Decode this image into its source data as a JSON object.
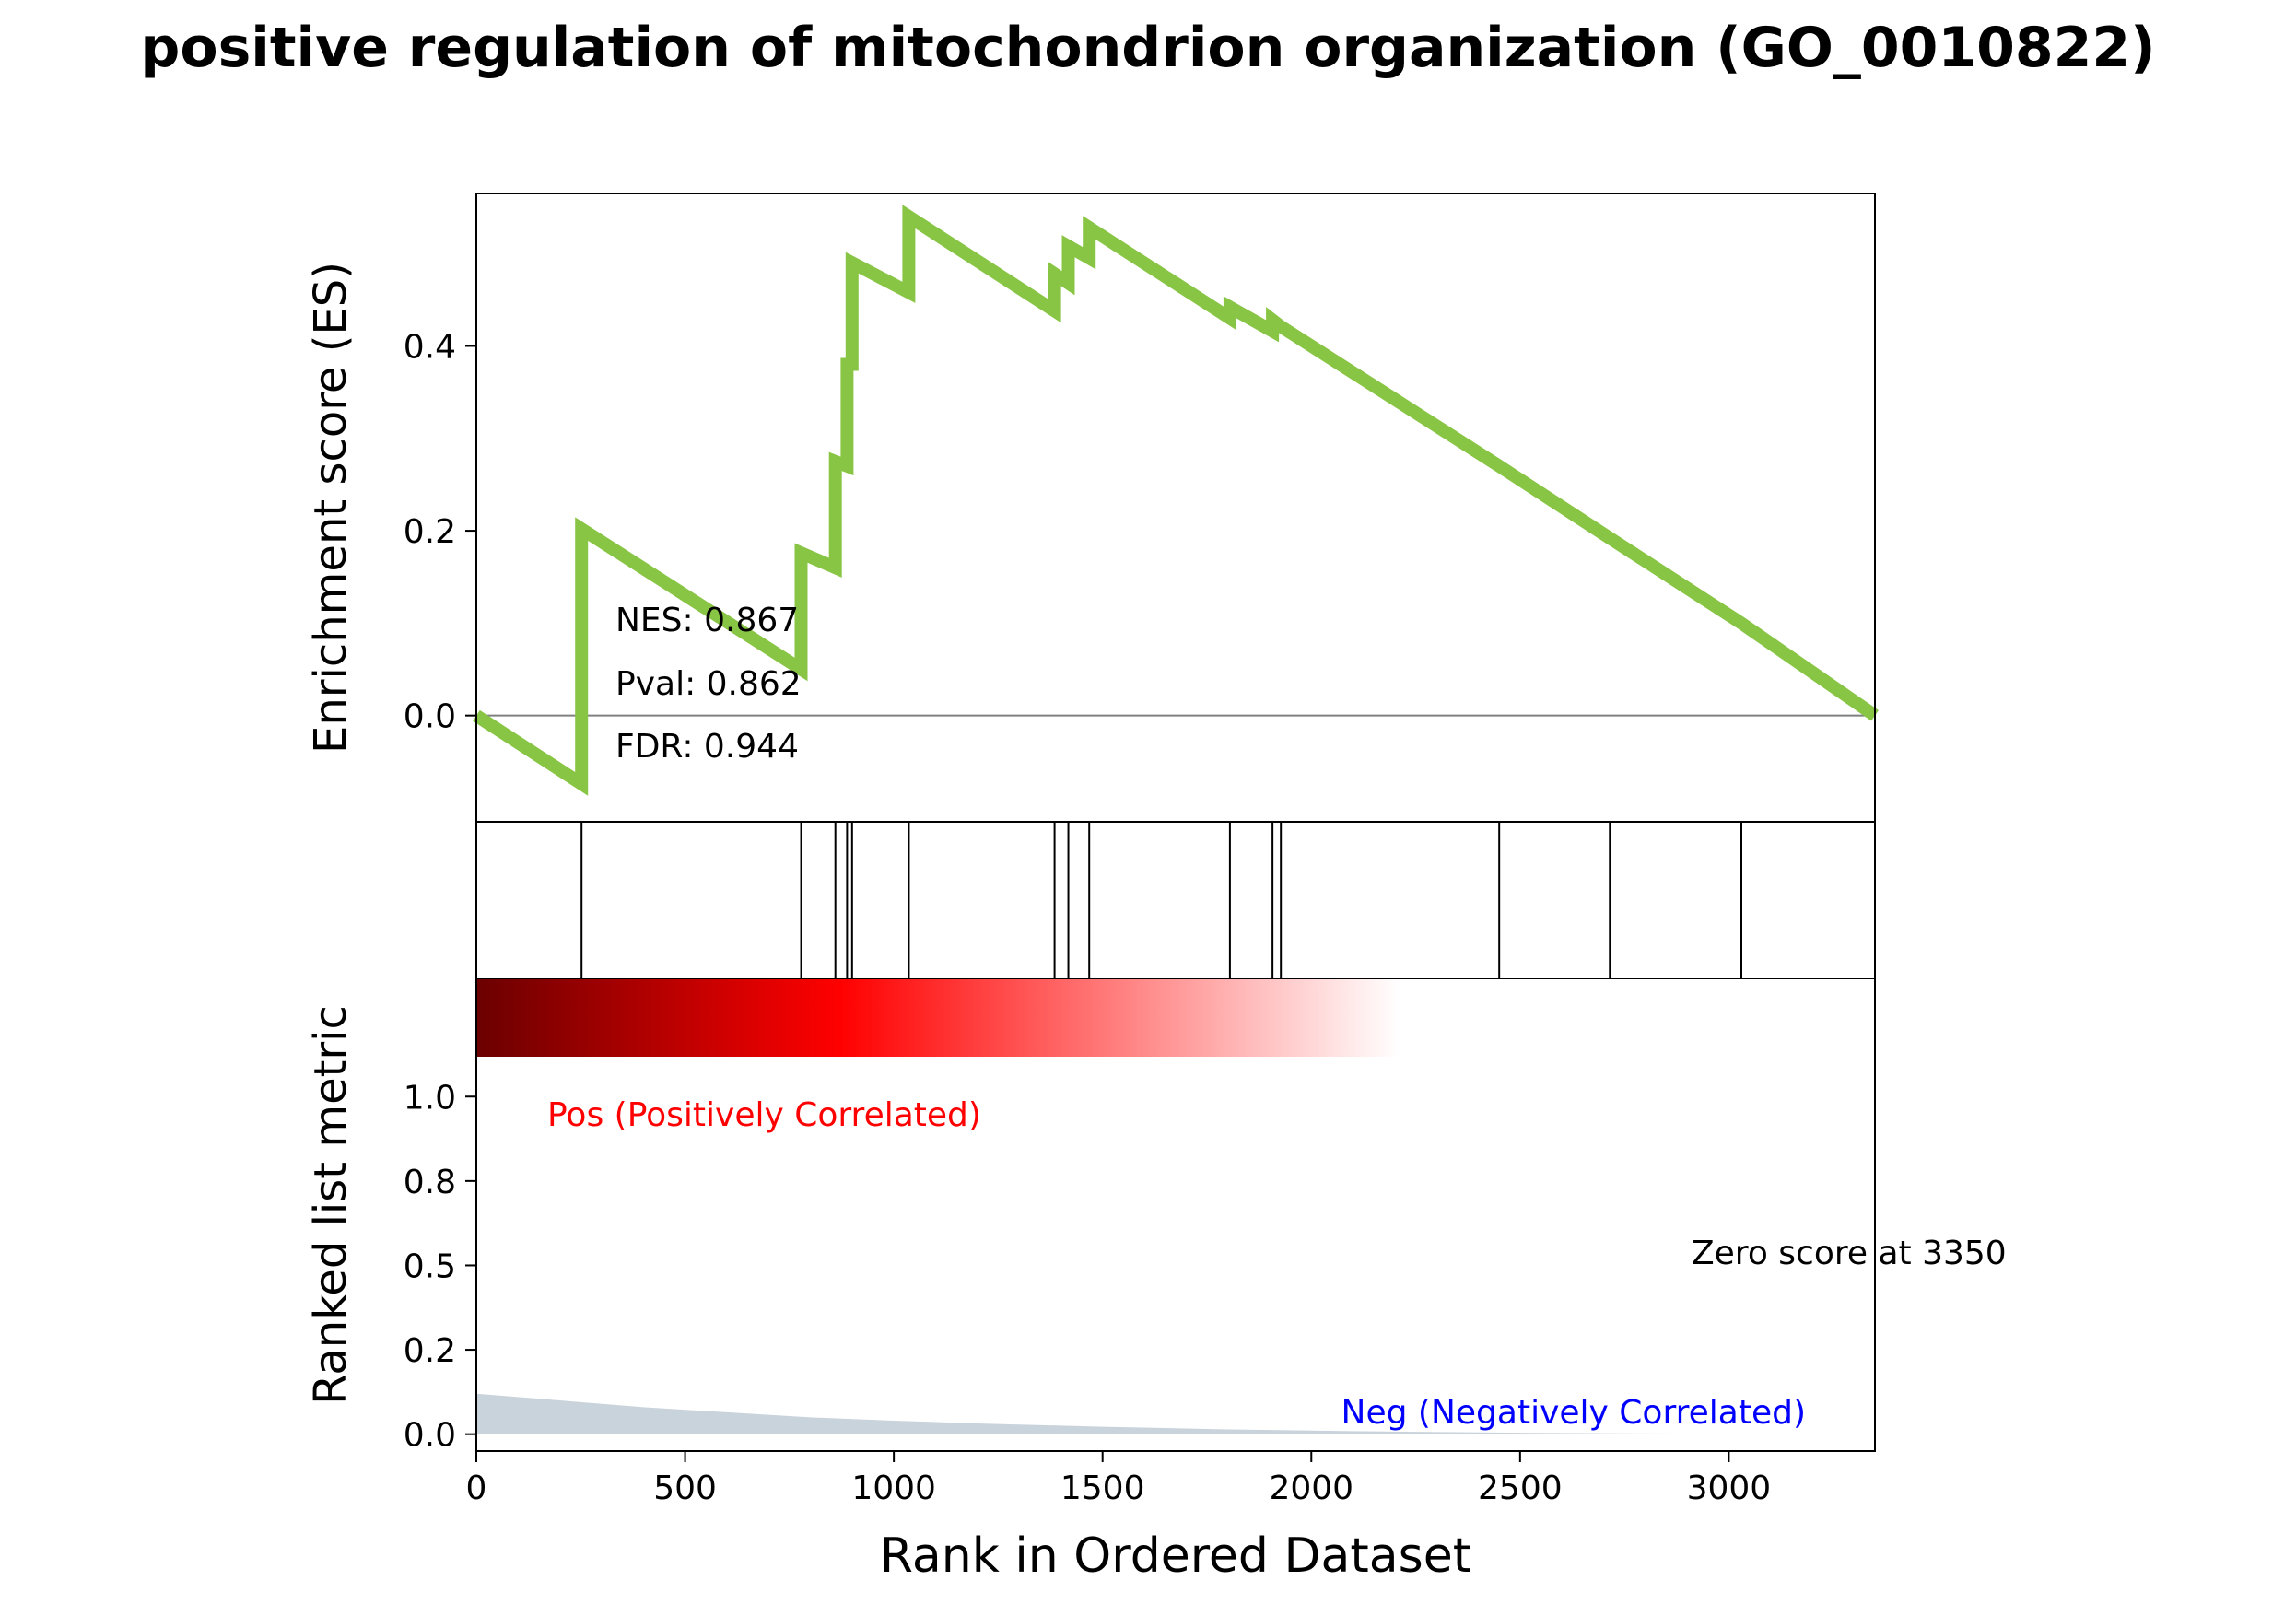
{
  "title": "positive regulation of mitochondrion organization (GO_0010822)",
  "colors": {
    "es_line": "#88c544",
    "hit_line": "#000000",
    "pos_label": "#ff0000",
    "neg_label": "#0000ff",
    "metric_fill": "#c9d3dc",
    "zero_line": "#808080",
    "heat_dark": "#6b0000",
    "heat_mid": "#ff0000",
    "heat_light": "#ffffff"
  },
  "chart_data": [
    {
      "type": "line",
      "panel": "enrichment",
      "ylabel": "Enrichment score (ES)",
      "ylim": [
        -0.115,
        0.565
      ],
      "yticks": [
        0.0,
        0.2,
        0.4
      ],
      "ytick_labels": [
        "0.0",
        "0.2",
        "0.4"
      ],
      "xlim": [
        0,
        3350
      ],
      "stats": [
        "NES: 0.867",
        "Pval: 0.862",
        "FDR: 0.944"
      ],
      "series": [
        {
          "x": [
            0,
            252,
            252,
            778,
            778,
            860,
            860,
            888,
            888,
            900,
            900,
            1036,
            1036,
            1385,
            1385,
            1418,
            1418,
            1468,
            1468,
            1805,
            1805,
            1907,
            1907,
            1927,
            1927,
            2450,
            2450,
            2715,
            2715,
            3030,
            3030,
            3350
          ],
          "y": [
            0.0,
            -0.074,
            0.202,
            0.05,
            0.176,
            0.16,
            0.275,
            0.27,
            0.38,
            0.38,
            0.49,
            0.458,
            0.54,
            0.438,
            0.478,
            0.468,
            0.508,
            0.495,
            0.528,
            0.43,
            0.442,
            0.416,
            0.428,
            0.421,
            0.421,
            0.27,
            0.27,
            0.192,
            0.192,
            0.1,
            0.1,
            0.0
          ]
        }
      ]
    },
    {
      "type": "barcode",
      "panel": "hits",
      "xlim": [
        0,
        3350
      ],
      "hits": [
        252,
        778,
        860,
        888,
        900,
        1036,
        1385,
        1418,
        1468,
        1805,
        1907,
        1927,
        2450,
        2715,
        3030
      ]
    },
    {
      "type": "area",
      "panel": "ranked_metric",
      "xlabel": "Rank in Ordered Dataset",
      "ylabel": "Ranked list metric",
      "xlim": [
        0,
        3350
      ],
      "xticks": [
        0,
        500,
        1000,
        1500,
        2000,
        2500,
        3000
      ],
      "xtick_labels": [
        "0",
        "500",
        "1000",
        "1500",
        "2000",
        "2500",
        "3000"
      ],
      "ylim": [
        -0.05,
        1.35
      ],
      "yticks": [
        0.0,
        0.25,
        0.5,
        0.75,
        1.0
      ],
      "ytick_labels": [
        "0.0",
        "0.2",
        "0.5",
        "0.8",
        "1.0"
      ],
      "pos_label": "Pos (Positively Correlated)",
      "neg_label": "Neg (Negatively Correlated)",
      "zero_score_label": "Zero score at 3350",
      "series": [
        {
          "x": [
            0,
            200,
            400,
            600,
            800,
            1000,
            1200,
            1500,
            1800,
            2100,
            2400,
            2800,
            3350
          ],
          "y": [
            0.12,
            0.1,
            0.08,
            0.065,
            0.05,
            0.04,
            0.032,
            0.022,
            0.014,
            0.009,
            0.005,
            0.002,
            0.0
          ]
        }
      ]
    }
  ]
}
